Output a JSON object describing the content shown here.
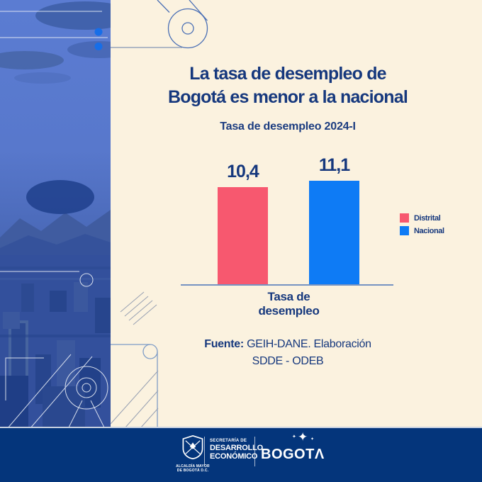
{
  "title": {
    "line1": "La tasa de desempleo de",
    "line2": "Bogotá es menor a la nacional"
  },
  "subtitle": "Tasa de desempleo 2024-I",
  "chart_data": {
    "type": "bar",
    "title": "Tasa de desempleo 2024-I",
    "categories": [
      "Distrital",
      "Nacional"
    ],
    "values": [
      10.4,
      11.1
    ],
    "value_labels": [
      "10,4",
      "11,1"
    ],
    "colors": [
      "#F7586F",
      "#0E7BF5"
    ],
    "xlabel": "Tasa de desempleo",
    "xlabel_lines": [
      "Tasa de",
      "desempleo"
    ],
    "ylim": [
      0,
      12
    ],
    "grid": false,
    "legend_position": "right",
    "legend": [
      {
        "label": "Distrital",
        "color": "#F7586F"
      },
      {
        "label": "Nacional",
        "color": "#0E7BF5"
      }
    ]
  },
  "source": {
    "label_bold": "Fuente:",
    "text_line1": "GEIH-DANE. Elaboración",
    "text_line2": "SDDE - ODEB"
  },
  "footer": {
    "alcaldia_line1": "ALCALDÍA MAYOR",
    "alcaldia_line2": "DE BOGOTÁ D.C.",
    "secretaria_line1": "SECRETARÍA DE",
    "secretaria_line2": "DESARROLLO",
    "secretaria_line3": "ECONÓMICO",
    "bogota_text": "BOGOT",
    "bogota_last_letter": "Λ"
  },
  "icons": {
    "star_big": "✦",
    "star_small": "✦",
    "star_tiny": "✦"
  },
  "colors": {
    "background": "#FBF2DF",
    "navy_text": "#16387D",
    "pink": "#F7586F",
    "blue": "#0E7BF5",
    "footer_navy": "#04357B",
    "axis": "#7693C2"
  }
}
